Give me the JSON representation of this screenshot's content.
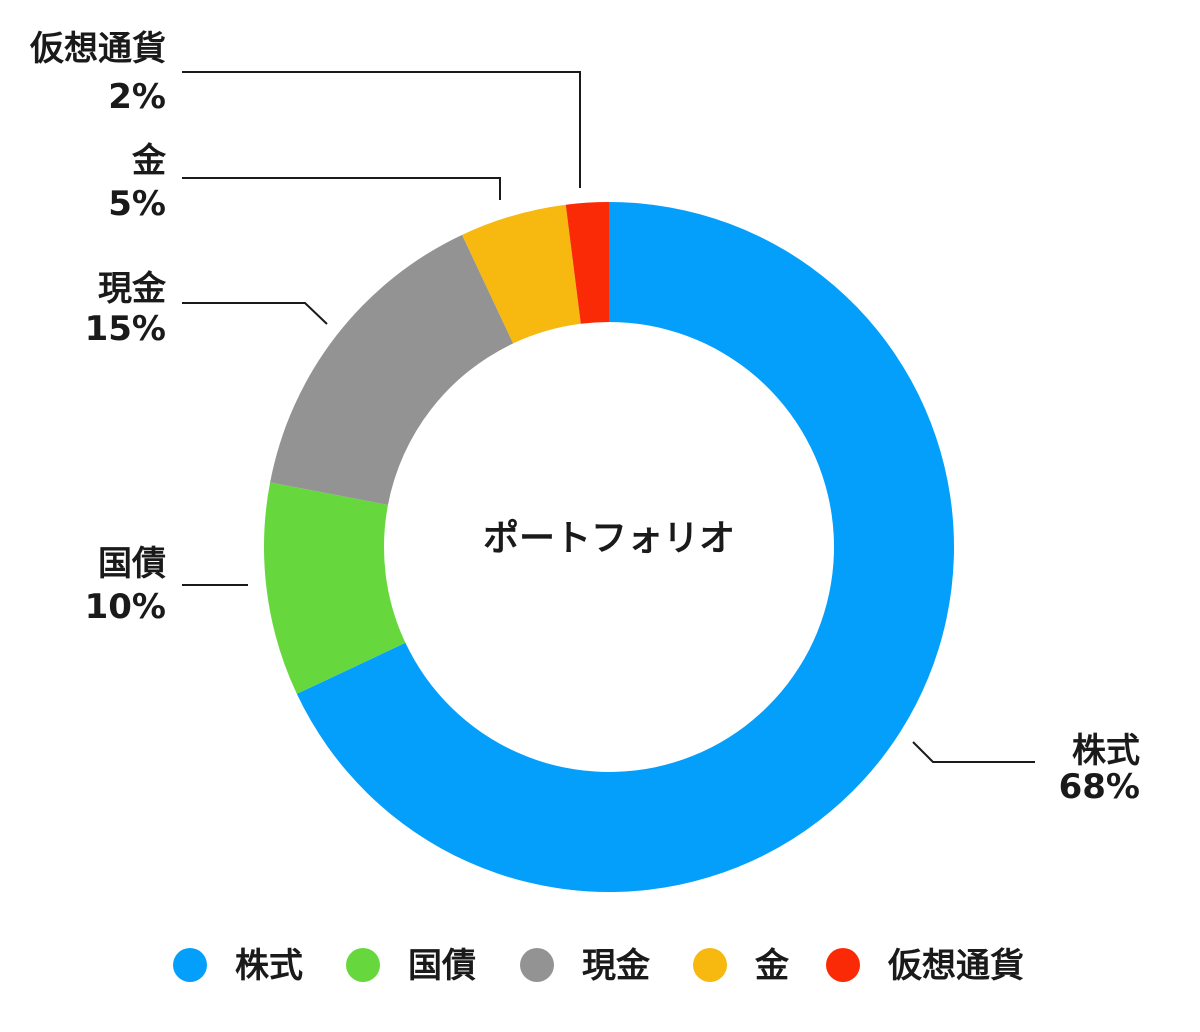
{
  "chart_data": {
    "type": "pie",
    "variant": "donut",
    "title": "ポートフォリオ",
    "categories": [
      "株式",
      "国債",
      "現金",
      "金",
      "仮想通貨"
    ],
    "values": [
      68,
      10,
      15,
      5,
      2
    ],
    "value_labels": [
      "68%",
      "10%",
      "15%",
      "5%",
      "2%"
    ],
    "unit": "%",
    "colors": [
      "#049ffb",
      "#66d83e",
      "#939393",
      "#f7b90f",
      "#fb2a06"
    ],
    "legend": {
      "position": "bottom",
      "items": [
        "株式",
        "国債",
        "現金",
        "金",
        "仮想通貨"
      ]
    }
  }
}
